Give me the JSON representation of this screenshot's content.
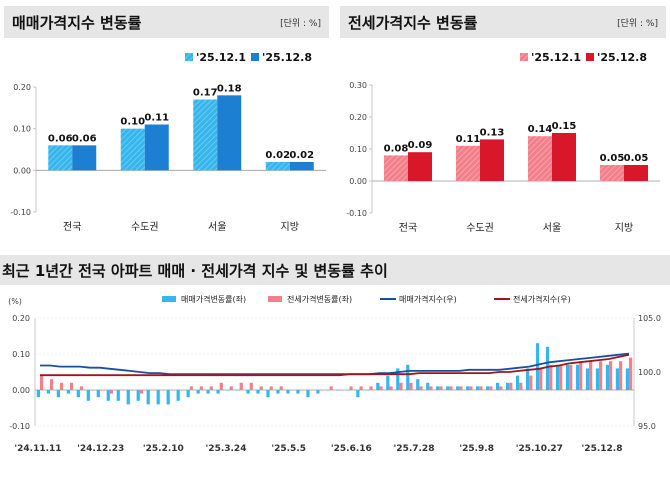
{
  "panels": [
    {
      "title": "매매가격지수 변동률",
      "unit": "[단위 : %]"
    },
    {
      "title": "전세가격지수 변동률",
      "unit": "[단위 : %]"
    },
    {
      "title": "최근 1년간 전국 아파트 매매 · 전세가격 지수 및 변동률 추이"
    }
  ],
  "colors": {
    "sale_light": "#35b6ec",
    "sale_dark": "#1d7fd1",
    "lease_light": "#f37f8a",
    "lease_dark": "#d8182a",
    "sale_index_line": "#1a4f9c",
    "lease_index_line": "#a3141e"
  },
  "chart_data": [
    {
      "type": "bar",
      "title": "매매가격지수 변동률",
      "unit": "[단위 : %]",
      "categories": [
        "전국",
        "수도권",
        "서울",
        "지방"
      ],
      "series": [
        {
          "name": "'25.12.1",
          "values": [
            0.06,
            0.1,
            0.17,
            0.02
          ],
          "labels": [
            "0.06",
            "0.10",
            "0.17",
            "0.02"
          ]
        },
        {
          "name": "'25.12.8",
          "values": [
            0.06,
            0.11,
            0.18,
            0.02
          ],
          "labels": [
            "0.06",
            "0.11",
            "0.18",
            "0.02"
          ]
        }
      ],
      "ylim": [
        -0.1,
        0.2
      ],
      "yticks": [
        -0.1,
        0.0,
        0.1,
        0.2
      ],
      "ytick_labels": [
        "-0.10",
        "0.00",
        "0.10",
        "0.20"
      ],
      "legend": "top-right"
    },
    {
      "type": "bar",
      "title": "전세가격지수 변동률",
      "unit": "[단위 : %]",
      "categories": [
        "전국",
        "수도권",
        "서울",
        "지방"
      ],
      "series": [
        {
          "name": "'25.12.1",
          "values": [
            0.08,
            0.11,
            0.14,
            0.05
          ],
          "labels": [
            "0.08",
            "0.11",
            "0.14",
            "0.05"
          ]
        },
        {
          "name": "'25.12.8",
          "values": [
            0.09,
            0.13,
            0.15,
            0.05
          ],
          "labels": [
            "0.09",
            "0.13",
            "0.15",
            "0.05"
          ]
        }
      ],
      "ylim": [
        -0.1,
        0.3
      ],
      "yticks": [
        -0.1,
        0.0,
        0.1,
        0.2,
        0.3
      ],
      "ytick_labels": [
        "-0.10",
        "0.00",
        "0.10",
        "0.20",
        "0.30"
      ],
      "legend": "top-right"
    },
    {
      "type": "bar",
      "title": "최근 1년간 전국 아파트 매매 · 전세가격 지수 및 변동률 추이",
      "ylabel_left": "(%)",
      "x_tick_labels": [
        "'24.11.11",
        "'24.12.23",
        "'25.2.10",
        "'25.3.24",
        "'25.5.5",
        "'25.6.16",
        "'25.7.28",
        "'25.9.8",
        "'25.10.27",
        "'25.12.8"
      ],
      "ylim_left": [
        -0.1,
        0.2
      ],
      "yticks_left": [
        "-0.10",
        "0.00",
        "0.10",
        "0.20"
      ],
      "ylim_right": [
        95.0,
        105.0
      ],
      "yticks_right": [
        "95.0",
        "100.0",
        "105.0"
      ],
      "series": [
        {
          "name": "매매가격변동률(좌)",
          "type": "bar",
          "axis": "left",
          "values": [
            -0.02,
            -0.01,
            -0.02,
            -0.01,
            -0.02,
            -0.03,
            -0.02,
            -0.03,
            -0.03,
            -0.04,
            -0.03,
            -0.04,
            -0.04,
            -0.04,
            -0.03,
            -0.02,
            -0.01,
            -0.01,
            -0.01,
            0.0,
            0.0,
            -0.01,
            -0.01,
            -0.02,
            -0.01,
            -0.01,
            -0.01,
            -0.02,
            -0.01,
            0.0,
            0.0,
            0.0,
            -0.02,
            0.0,
            0.02,
            0.04,
            0.06,
            0.07,
            0.03,
            0.02,
            0.01,
            0.01,
            0.01,
            0.01,
            0.01,
            0.01,
            0.02,
            0.02,
            0.04,
            0.06,
            0.13,
            0.12,
            0.07,
            0.07,
            0.07,
            0.06,
            0.06,
            0.07,
            0.06,
            0.06
          ]
        },
        {
          "name": "전세가격변동률(좌)",
          "type": "bar",
          "axis": "right_of_pair",
          "values": [
            0.04,
            0.03,
            0.02,
            0.02,
            0.01,
            0.0,
            0.0,
            -0.01,
            0.0,
            0.0,
            -0.01,
            0.0,
            0.0,
            0.0,
            0.0,
            0.01,
            0.01,
            0.01,
            0.02,
            0.01,
            0.02,
            0.02,
            0.01,
            0.01,
            0.01,
            0.0,
            0.0,
            0.0,
            0.0,
            0.01,
            0.0,
            0.01,
            0.01,
            0.01,
            0.01,
            0.01,
            0.02,
            0.02,
            0.01,
            0.01,
            0.01,
            0.01,
            0.01,
            0.01,
            0.01,
            0.01,
            0.01,
            0.02,
            0.02,
            0.04,
            0.06,
            0.07,
            0.07,
            0.07,
            0.08,
            0.08,
            0.08,
            0.08,
            0.08,
            0.09
          ]
        },
        {
          "name": "매매가격지수(우)",
          "type": "line",
          "axis": "right",
          "values": [
            100.6,
            100.6,
            100.5,
            100.5,
            100.5,
            100.4,
            100.4,
            100.3,
            100.2,
            100.1,
            100.0,
            99.9,
            99.9,
            99.8,
            99.8,
            99.8,
            99.8,
            99.8,
            99.8,
            99.8,
            99.8,
            99.8,
            99.8,
            99.8,
            99.8,
            99.8,
            99.8,
            99.8,
            99.8,
            99.8,
            99.8,
            99.8,
            99.8,
            99.8,
            99.9,
            99.9,
            100.0,
            100.1,
            100.1,
            100.1,
            100.1,
            100.1,
            100.1,
            100.2,
            100.2,
            100.2,
            100.2,
            100.3,
            100.4,
            100.5,
            100.7,
            100.9,
            101.0,
            101.1,
            101.2,
            101.3,
            101.4,
            101.5,
            101.6,
            101.7
          ]
        },
        {
          "name": "전세가격지수(우)",
          "type": "line",
          "axis": "right",
          "values": [
            99.7,
            99.7,
            99.7,
            99.7,
            99.7,
            99.7,
            99.7,
            99.7,
            99.7,
            99.7,
            99.7,
            99.7,
            99.7,
            99.7,
            99.7,
            99.7,
            99.7,
            99.7,
            99.7,
            99.7,
            99.7,
            99.7,
            99.7,
            99.7,
            99.7,
            99.7,
            99.7,
            99.7,
            99.7,
            99.7,
            99.7,
            99.8,
            99.8,
            99.8,
            99.8,
            99.8,
            99.8,
            99.8,
            99.9,
            99.9,
            99.9,
            99.9,
            99.9,
            99.9,
            99.9,
            99.9,
            100.0,
            100.0,
            100.1,
            100.2,
            100.3,
            100.5,
            100.6,
            100.8,
            100.9,
            101.0,
            101.1,
            101.2,
            101.4,
            101.6
          ]
        }
      ],
      "legend": "top"
    }
  ]
}
